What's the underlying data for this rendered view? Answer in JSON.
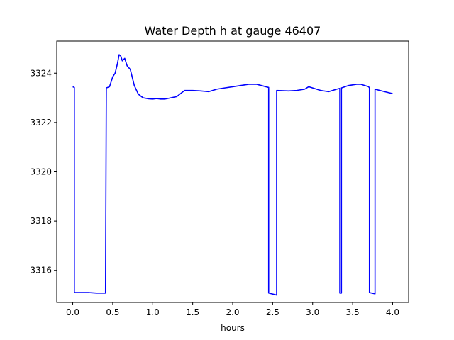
{
  "chart_data": {
    "type": "line",
    "title": "Water Depth h at gauge 46407",
    "xlabel": "hours",
    "ylabel": "",
    "xlim": [
      -0.2,
      4.2
    ],
    "ylim": [
      3314.7,
      3325.3
    ],
    "xticks": [
      0.0,
      0.5,
      1.0,
      1.5,
      2.0,
      2.5,
      3.0,
      3.5,
      4.0
    ],
    "xtick_labels": [
      "0.0",
      "0.5",
      "1.0",
      "1.5",
      "2.0",
      "2.5",
      "3.0",
      "3.5",
      "4.0"
    ],
    "yticks": [
      3316,
      3318,
      3320,
      3322,
      3324
    ],
    "ytick_labels": [
      "3316",
      "3318",
      "3320",
      "3322",
      "3324"
    ],
    "grid": false,
    "series": [
      {
        "color": "#0000ff",
        "x": [
          0.0,
          0.02,
          0.02,
          0.1,
          0.2,
          0.3,
          0.35,
          0.41,
          0.42,
          0.46,
          0.5,
          0.53,
          0.56,
          0.58,
          0.6,
          0.62,
          0.65,
          0.68,
          0.72,
          0.77,
          0.82,
          0.88,
          0.95,
          1.0,
          1.05,
          1.1,
          1.15,
          1.2,
          1.3,
          1.4,
          1.5,
          1.6,
          1.7,
          1.8,
          1.9,
          2.0,
          2.1,
          2.2,
          2.3,
          2.45,
          2.45,
          2.55,
          2.55,
          2.7,
          2.8,
          2.9,
          2.95,
          3.0,
          3.1,
          3.2,
          3.3,
          3.34,
          3.34,
          3.36,
          3.36,
          3.45,
          3.55,
          3.6,
          3.65,
          3.7,
          3.71,
          3.71,
          3.78,
          3.78,
          3.9,
          4.0
        ],
        "y": [
          3323.45,
          3323.42,
          3315.1,
          3315.1,
          3315.1,
          3315.08,
          3315.08,
          3315.08,
          3323.4,
          3323.45,
          3323.85,
          3324.0,
          3324.4,
          3324.75,
          3324.7,
          3324.5,
          3324.6,
          3324.3,
          3324.15,
          3323.5,
          3323.15,
          3323.0,
          3322.96,
          3322.95,
          3322.97,
          3322.95,
          3322.95,
          3322.98,
          3323.05,
          3323.3,
          3323.3,
          3323.28,
          3323.25,
          3323.35,
          3323.4,
          3323.45,
          3323.5,
          3323.55,
          3323.55,
          3323.42,
          3315.08,
          3315.0,
          3323.3,
          3323.28,
          3323.3,
          3323.35,
          3323.45,
          3323.4,
          3323.3,
          3323.25,
          3323.35,
          3323.38,
          3315.08,
          3315.08,
          3323.4,
          3323.5,
          3323.55,
          3323.55,
          3323.5,
          3323.45,
          3323.4,
          3315.1,
          3315.05,
          3323.35,
          3323.25,
          3323.17
        ]
      }
    ]
  }
}
